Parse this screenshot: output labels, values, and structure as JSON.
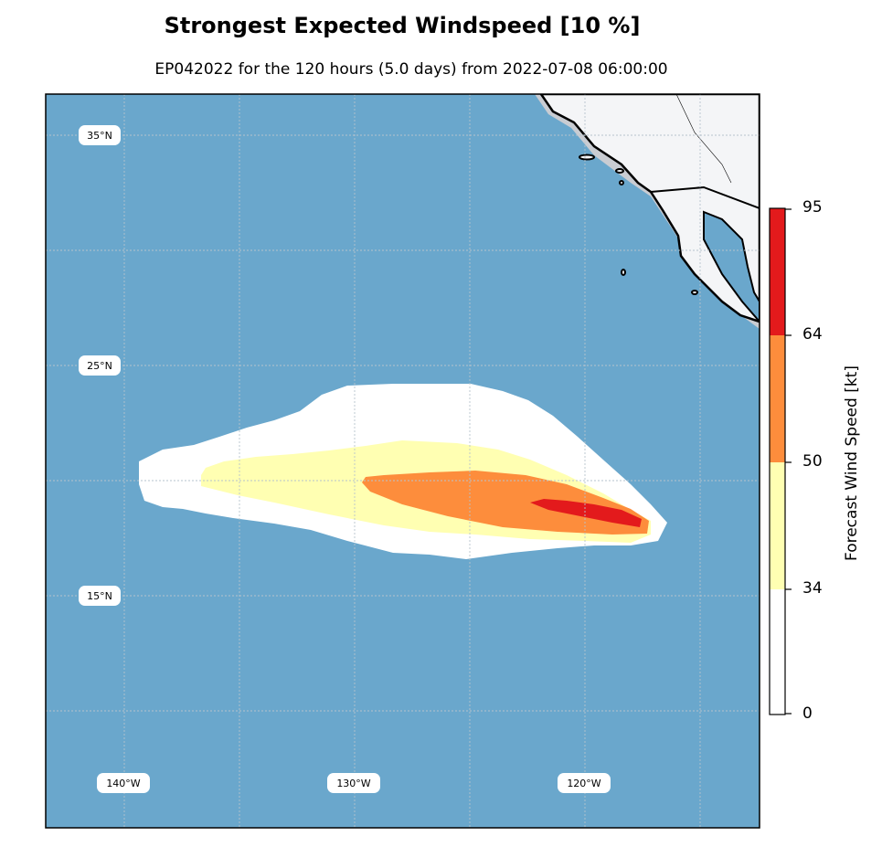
{
  "title": "Strongest Expected Windspeed [10 %]",
  "subtitle": "EP042022 for the 120 hours (5.0 days) from 2022-07-08 06:00:00",
  "map": {
    "lat_labels": [
      "35°N",
      "25°N",
      "15°N"
    ],
    "lon_labels": [
      "140°W",
      "130°W",
      "120°W"
    ]
  },
  "colorbar": {
    "label": "Forecast Wind Speed [kt]",
    "ticks": [
      "95",
      "64",
      "50",
      "34",
      "0"
    ]
  },
  "colors": {
    "ocean": "#6aa7cc",
    "land": "#f4f5f7",
    "band_34_50": "#ffffb2",
    "band_50_64": "#fd8d3c",
    "band_64_95": "#e31a1c",
    "band_0_34": "#ffffff"
  }
}
